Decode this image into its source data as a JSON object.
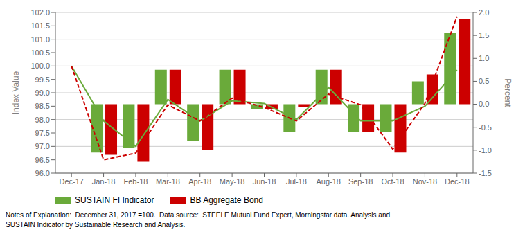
{
  "chart_data": {
    "type": "combo",
    "categories": [
      "Dec-17",
      "Jan-18",
      "Feb-18",
      "Mar-18",
      "Apr-18",
      "May-18",
      "Jun-18",
      "Jul-18",
      "Aug-18",
      "Sep-18",
      "Oct-18",
      "Nov-18",
      "Dec-18"
    ],
    "series": [
      {
        "name": "SUSTAIN FI Indicator",
        "type": "bar",
        "axis": "y2",
        "color": "#6aaa3a",
        "values": [
          null,
          -1.05,
          -0.95,
          0.75,
          -0.8,
          0.75,
          -0.1,
          -0.6,
          0.75,
          -0.6,
          -0.6,
          0.5,
          1.55
        ]
      },
      {
        "name": "BB Aggregate Bond",
        "type": "bar",
        "axis": "y2",
        "color": "#cc0000",
        "values": [
          null,
          -1.1,
          -1.25,
          0.75,
          -1.0,
          0.75,
          -0.1,
          -0.05,
          0.75,
          -0.6,
          -1.05,
          0.65,
          1.85
        ]
      },
      {
        "name": "SUSTAIN FI Indicator",
        "type": "line",
        "color": "#6aaa3a",
        "line_style": "solid",
        "values": [
          100.0,
          97.95,
          97.0,
          98.75,
          97.95,
          98.7,
          98.6,
          98.0,
          99.2,
          97.95,
          97.95,
          98.5,
          99.85
        ]
      },
      {
        "name": "BB Aggregate Bond",
        "type": "line",
        "color": "#cc0000",
        "line_style": "dashed",
        "values": [
          100.0,
          96.5,
          96.75,
          98.55,
          97.95,
          98.8,
          98.45,
          97.95,
          98.95,
          98.55,
          96.9,
          98.6,
          101.85
        ]
      }
    ],
    "ylabel": "Index Value",
    "y2label": "Percent",
    "ylim": [
      96,
      102
    ],
    "yticks": [
      {
        "value": 96,
        "label": "96.0"
      },
      96.5,
      {
        "value": 97,
        "label": "97.0"
      },
      97.5,
      {
        "value": 98,
        "label": "98.0"
      },
      98.5,
      {
        "value": 99,
        "label": "99.0"
      },
      99.5,
      {
        "value": 100,
        "label": "100.0"
      },
      100.5,
      {
        "value": 101,
        "label": "101.0"
      },
      101.5,
      {
        "value": 102,
        "label": "102.0"
      }
    ],
    "y2lim": [
      -1.5,
      2.0
    ],
    "y2ticks": [
      -1.5,
      {
        "value": -1,
        "label": "-1.0"
      },
      -0.5,
      {
        "value": 0,
        "label": "0.0"
      },
      0.5,
      {
        "value": 1,
        "label": "1.0"
      },
      1.5,
      {
        "value": 2,
        "label": "2.0"
      }
    ],
    "grid": true,
    "legend": "lower left",
    "footnote": "Notes of Explanation:  December 31, 2017 =100.  Data source:  STEELE Mutual Fund Expert, Morningstar data. Analysis and\nSUSTAIN Indicator by Sustainable Research and Analysis."
  }
}
